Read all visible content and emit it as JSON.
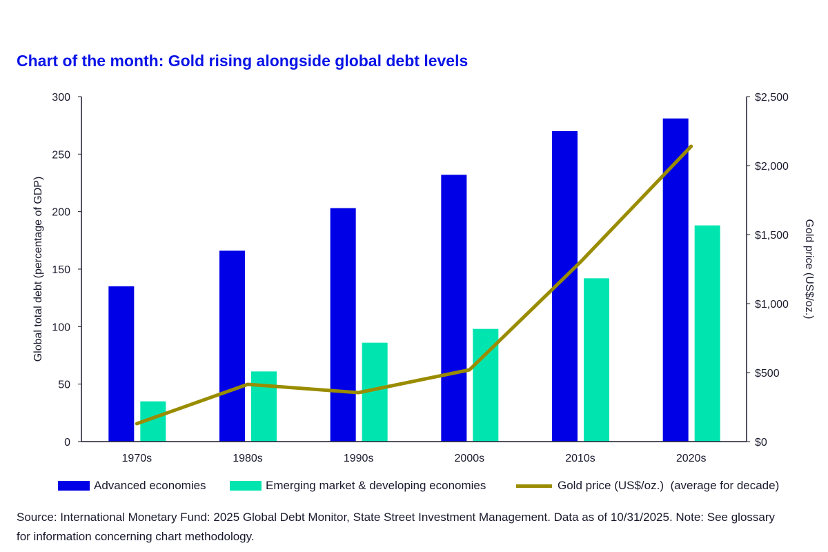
{
  "title": "Chart of the month: Gold rising alongside global debt levels",
  "chart_data": {
    "type": "bar",
    "title": "Chart of the month: Gold rising alongside global debt levels",
    "categories": [
      "1970s",
      "1980s",
      "1990s",
      "2000s",
      "2010s",
      "2020s"
    ],
    "ylabel": "Global total debt (percentage of GDP)",
    "y2label": "Gold price (US$/oz.)",
    "ylim": [
      0,
      300
    ],
    "y2lim": [
      0,
      2500
    ],
    "yticks": [
      "0",
      "50",
      "100",
      "150",
      "200",
      "250",
      "300"
    ],
    "y2ticks": [
      "$0",
      "$500",
      "$1,000",
      "$1,500",
      "$2,000",
      "$2,500"
    ],
    "series": [
      {
        "name": "Advanced economies",
        "type": "bar",
        "axis": "left",
        "color": "#0000e6",
        "values": [
          135,
          166,
          203,
          232,
          270,
          281
        ]
      },
      {
        "name": "Emerging market & developing economies",
        "type": "bar",
        "axis": "left",
        "color": "#00e5b0",
        "values": [
          35,
          61,
          86,
          98,
          142,
          188
        ]
      },
      {
        "name": "Gold price (US$/oz.)  (average for decade)",
        "type": "line",
        "axis": "right",
        "color": "#9a8c00",
        "values": [
          130,
          415,
          355,
          520,
          1300,
          2140
        ]
      }
    ],
    "legend_position": "bottom"
  },
  "source": "Source: International Monetary Fund: 2025 Global Debt Monitor, State Street Investment Management. Data as of 10/31/2025. Note: See glossary for information concerning chart methodology."
}
